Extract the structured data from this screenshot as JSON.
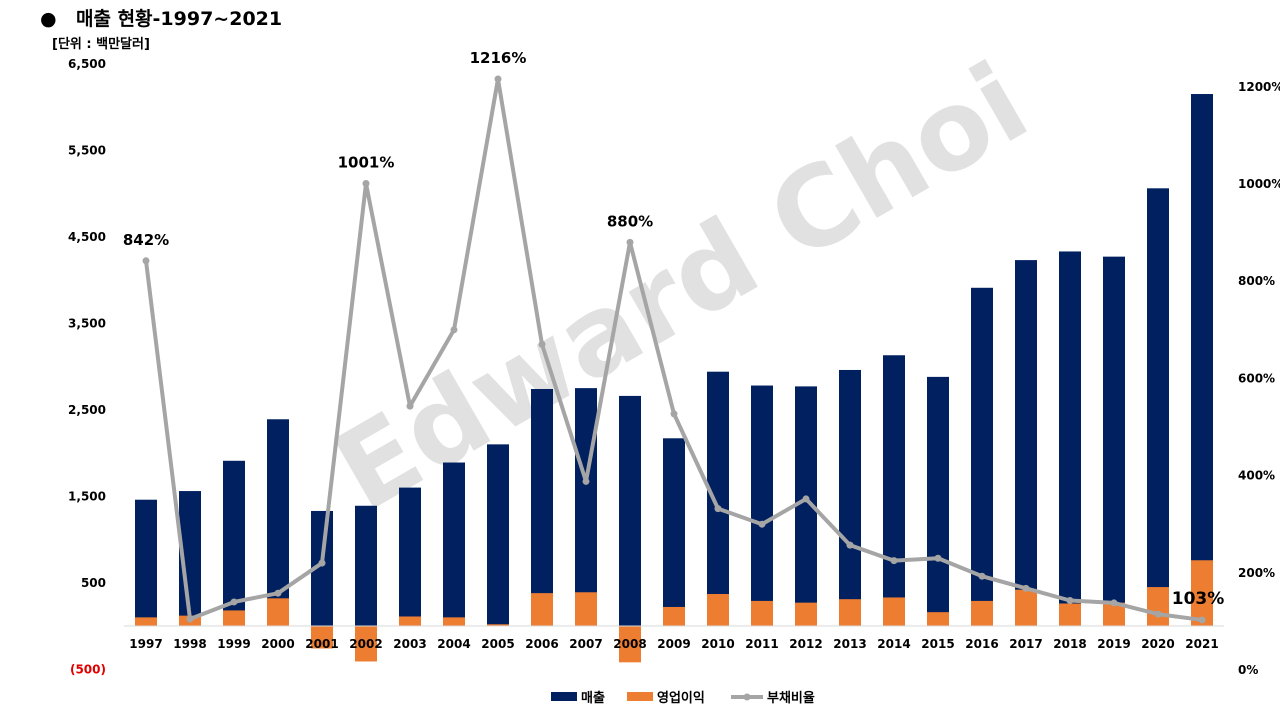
{
  "header": {
    "bullet": "●",
    "title": "매출 현황-1997~2021",
    "unit": "[단위 : 백만달러]"
  },
  "watermark": "Edward Choi",
  "chart_data": {
    "type": "bar",
    "categories": [
      "1997",
      "1998",
      "1999",
      "2000",
      "2001",
      "2002",
      "2003",
      "2004",
      "2005",
      "2006",
      "2007",
      "2008",
      "2009",
      "2010",
      "2011",
      "2012",
      "2013",
      "2014",
      "2015",
      "2016",
      "2017",
      "2018",
      "2019",
      "2020",
      "2021"
    ],
    "series": [
      {
        "name": "매출",
        "type": "bar",
        "axis": "left",
        "color": "#002060",
        "values": [
          1460,
          1560,
          1910,
          2390,
          1330,
          1390,
          1600,
          1890,
          2100,
          2740,
          2750,
          2660,
          2170,
          2940,
          2780,
          2770,
          2960,
          3130,
          2880,
          3910,
          4230,
          4330,
          4270,
          5060,
          6150
        ]
      },
      {
        "name": "영업이익",
        "type": "bar",
        "axis": "left",
        "color": "#ed7d31",
        "values": [
          100,
          120,
          180,
          320,
          -260,
          -410,
          110,
          100,
          20,
          380,
          390,
          -420,
          220,
          370,
          290,
          270,
          310,
          330,
          160,
          290,
          420,
          260,
          270,
          450,
          760
        ]
      },
      {
        "name": "부채비율",
        "type": "line",
        "axis": "right",
        "color": "#a5a5a5",
        "values": [
          842,
          105,
          140,
          158,
          220,
          1001,
          543,
          700,
          1216,
          670,
          388,
          880,
          527,
          332,
          300,
          352,
          257,
          225,
          230,
          193,
          168,
          143,
          138,
          115,
          103
        ]
      }
    ],
    "annotations": [
      {
        "category": "1997",
        "text": "842%"
      },
      {
        "category": "2002",
        "text": "1001%"
      },
      {
        "category": "2005",
        "text": "1216%"
      },
      {
        "category": "2008",
        "text": "880%"
      },
      {
        "category": "2021",
        "text": "103%"
      }
    ],
    "yaxis_left": {
      "range": [
        -500,
        6500
      ],
      "ticks": [
        6500,
        5500,
        4500,
        3500,
        2500,
        1500,
        500,
        -500
      ],
      "tick_labels": [
        "6,500",
        "5,500",
        "4,500",
        "3,500",
        "2,500",
        "1,500",
        "500",
        "(500)"
      ]
    },
    "yaxis_right": {
      "range": [
        0,
        1300
      ],
      "ticks": [
        1200,
        1000,
        800,
        600,
        400,
        200,
        0
      ],
      "tick_labels": [
        "1200%",
        "1000%",
        "800%",
        "600%",
        "400%",
        "200%",
        "0%"
      ]
    },
    "legend": {
      "position": "bottom",
      "items": [
        "매출",
        "영업이익",
        "부채비율"
      ]
    }
  }
}
